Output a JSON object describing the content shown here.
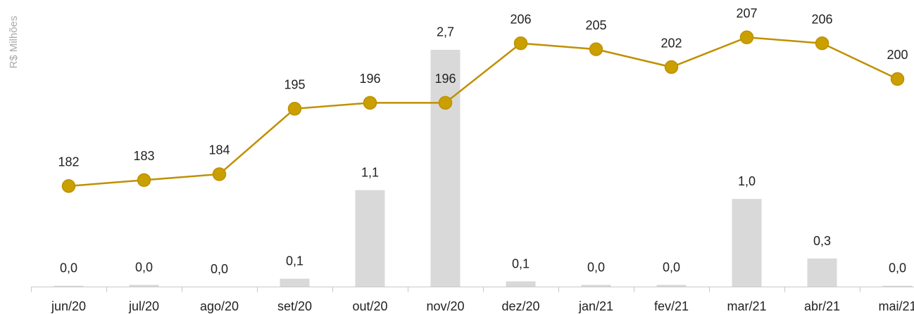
{
  "chart_data": {
    "type": "bar",
    "y_label": "R$ Milhões",
    "categories": [
      "jun/20",
      "jul/20",
      "ago/20",
      "set/20",
      "out/20",
      "nov/20",
      "dez/20",
      "jan/21",
      "fev/21",
      "mar/21",
      "abr/21",
      "mai/21"
    ],
    "series": [
      {
        "type": "bar",
        "color": "#d9d9d9",
        "values": [
          0.01,
          0.02,
          0.0,
          0.09,
          1.1,
          2.7,
          0.06,
          0.02,
          0.02,
          1.0,
          0.32,
          0.01
        ],
        "value_labels": [
          "0,0",
          "0,0",
          "0,0",
          "0,1",
          "1,1",
          "2,7",
          "0,1",
          "0,0",
          "0,0",
          "1,0",
          "0,3",
          "0,0"
        ]
      },
      {
        "type": "line",
        "axis": "y2",
        "color": "#bf9000",
        "marker_color": "#c9a000",
        "values": [
          182,
          183,
          184,
          195,
          196,
          196,
          206,
          205,
          202,
          207,
          206,
          200
        ]
      }
    ],
    "ylim": [
      0,
      3.1
    ],
    "y2lim": [
      165.1,
      210.8
    ]
  }
}
